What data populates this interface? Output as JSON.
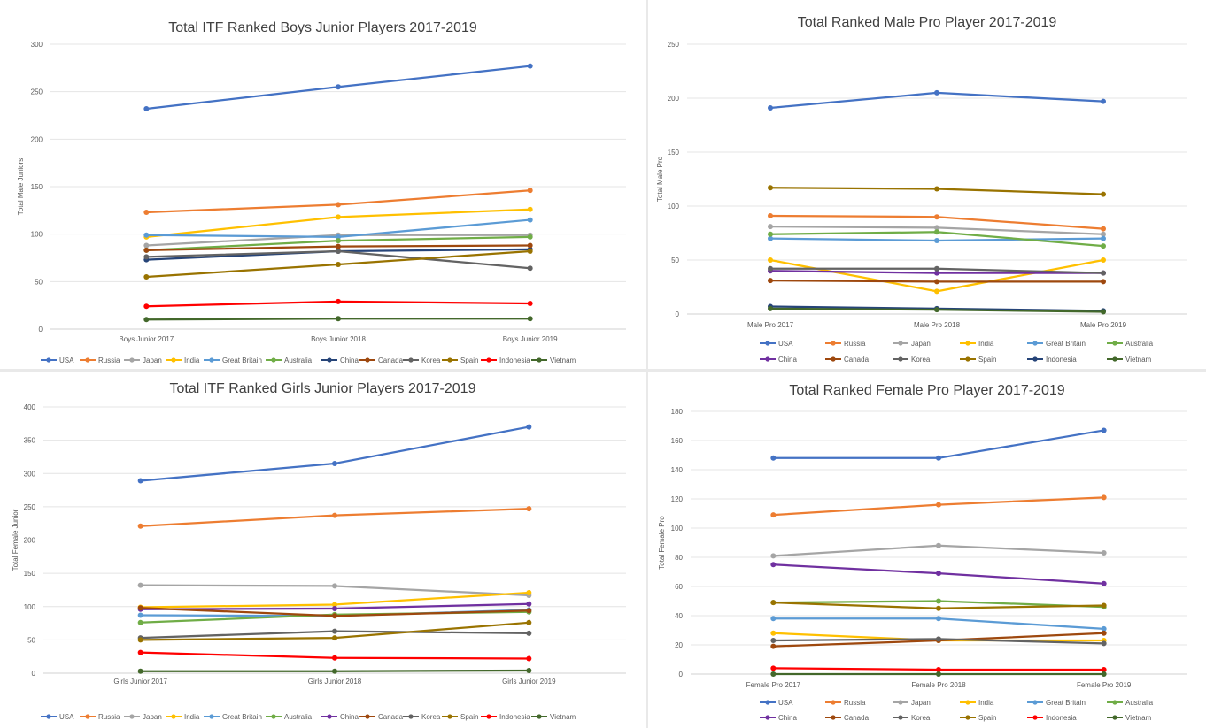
{
  "chart_data": [
    {
      "type": "line",
      "title": "Total ITF Ranked Boys Junior Players 2017-2019",
      "xlabel": "",
      "ylabel": "Total Male Juniors",
      "categories": [
        "Boys Junior 2017",
        "Boys Junior 2018",
        "Boys Junior 2019"
      ],
      "ylim": [
        0,
        300
      ],
      "yticks": [
        0,
        50,
        100,
        150,
        200,
        250,
        300
      ],
      "grid": true,
      "legend": "bottom",
      "series": [
        {
          "name": "USA",
          "color": "#4472c4",
          "values": [
            232,
            255,
            277
          ]
        },
        {
          "name": "Russia",
          "color": "#ed7d31",
          "values": [
            123,
            131,
            146
          ]
        },
        {
          "name": "Japan",
          "color": "#a5a5a5",
          "values": [
            88,
            99,
            99
          ]
        },
        {
          "name": "India",
          "color": "#ffc000",
          "values": [
            97,
            118,
            126
          ]
        },
        {
          "name": "Great Britain",
          "color": "#5b9bd5",
          "values": [
            99,
            97,
            115
          ]
        },
        {
          "name": "Australia",
          "color": "#70ad47",
          "values": [
            83,
            93,
            97
          ]
        },
        {
          "name": "China",
          "color": "#264478",
          "values": [
            73,
            82,
            84
          ]
        },
        {
          "name": "Canada",
          "color": "#9e480e",
          "values": [
            83,
            87,
            88
          ]
        },
        {
          "name": "Korea",
          "color": "#636363",
          "values": [
            76,
            82,
            64
          ]
        },
        {
          "name": "Spain",
          "color": "#997300",
          "values": [
            55,
            68,
            82
          ]
        },
        {
          "name": "Indonesia",
          "color": "#ff0000",
          "values": [
            24,
            29,
            27
          ]
        },
        {
          "name": "Vietnam",
          "color": "#43682b",
          "values": [
            10,
            11,
            11
          ]
        }
      ]
    },
    {
      "type": "line",
      "title": "Total Ranked Male Pro Player 2017-2019",
      "xlabel": "",
      "ylabel": "Total Male Pro",
      "categories": [
        "Male Pro 2017",
        "Male Pro 2018",
        "Male Pro 2019"
      ],
      "ylim": [
        0,
        250
      ],
      "yticks": [
        0,
        50,
        100,
        150,
        200,
        250
      ],
      "grid": true,
      "legend": "bottom",
      "series": [
        {
          "name": "USA",
          "color": "#4472c4",
          "values": [
            191,
            205,
            197
          ]
        },
        {
          "name": "Russia",
          "color": "#ed7d31",
          "values": [
            91,
            90,
            79
          ]
        },
        {
          "name": "Japan",
          "color": "#a5a5a5",
          "values": [
            81,
            80,
            74
          ]
        },
        {
          "name": "India",
          "color": "#ffc000",
          "values": [
            50,
            21,
            50
          ]
        },
        {
          "name": "Great Britain",
          "color": "#5b9bd5",
          "values": [
            70,
            68,
            70
          ]
        },
        {
          "name": "Australia",
          "color": "#70ad47",
          "values": [
            74,
            76,
            63
          ]
        },
        {
          "name": "China",
          "color": "#7030a0",
          "values": [
            40,
            38,
            38
          ]
        },
        {
          "name": "Canada",
          "color": "#9e480e",
          "values": [
            31,
            30,
            30
          ]
        },
        {
          "name": "Korea",
          "color": "#636363",
          "values": [
            42,
            42,
            38
          ]
        },
        {
          "name": "Spain",
          "color": "#997300",
          "values": [
            117,
            116,
            111
          ]
        },
        {
          "name": "Indonesia",
          "color": "#264478",
          "values": [
            7,
            5,
            3
          ]
        },
        {
          "name": "Vietnam",
          "color": "#43682b",
          "values": [
            5,
            4,
            2
          ]
        }
      ]
    },
    {
      "type": "line",
      "title": "Total ITF Ranked Girls Junior Players 2017-2019",
      "xlabel": "",
      "ylabel": "Total Female Junior",
      "categories": [
        "Girls Junior 2017",
        "Girls Junior 2018",
        "Girls Junior 2019"
      ],
      "ylim": [
        0,
        400
      ],
      "yticks": [
        0,
        50,
        100,
        150,
        200,
        250,
        300,
        350,
        400
      ],
      "grid": true,
      "legend": "bottom",
      "series": [
        {
          "name": "USA",
          "color": "#4472c4",
          "values": [
            289,
            315,
            370
          ]
        },
        {
          "name": "Russia",
          "color": "#ed7d31",
          "values": [
            221,
            237,
            247
          ]
        },
        {
          "name": "Japan",
          "color": "#a5a5a5",
          "values": [
            132,
            131,
            117
          ]
        },
        {
          "name": "India",
          "color": "#ffc000",
          "values": [
            99,
            103,
            121
          ]
        },
        {
          "name": "Great Britain",
          "color": "#5b9bd5",
          "values": [
            87,
            86,
            95
          ]
        },
        {
          "name": "Australia",
          "color": "#70ad47",
          "values": [
            76,
            88,
            92
          ]
        },
        {
          "name": "China",
          "color": "#7030a0",
          "values": [
            96,
            97,
            104
          ]
        },
        {
          "name": "Canada",
          "color": "#9e480e",
          "values": [
            98,
            86,
            94
          ]
        },
        {
          "name": "Korea",
          "color": "#636363",
          "values": [
            53,
            63,
            60
          ]
        },
        {
          "name": "Spain",
          "color": "#997300",
          "values": [
            50,
            53,
            76
          ]
        },
        {
          "name": "Indonesia",
          "color": "#ff0000",
          "values": [
            31,
            23,
            22
          ]
        },
        {
          "name": "Vietnam",
          "color": "#43682b",
          "values": [
            3,
            3,
            4
          ]
        }
      ]
    },
    {
      "type": "line",
      "title": "Total Ranked Female Pro Player 2017-2019",
      "xlabel": "",
      "ylabel": "Total Female Pro",
      "categories": [
        "Female Pro 2017",
        "Female Pro 2018",
        "Female Pro 2019"
      ],
      "ylim": [
        0,
        180
      ],
      "yticks": [
        0,
        20,
        40,
        60,
        80,
        100,
        120,
        140,
        160,
        180
      ],
      "grid": true,
      "legend": "bottom",
      "series": [
        {
          "name": "USA",
          "color": "#4472c4",
          "values": [
            148,
            148,
            167
          ]
        },
        {
          "name": "Russia",
          "color": "#ed7d31",
          "values": [
            109,
            116,
            121
          ]
        },
        {
          "name": "Japan",
          "color": "#a5a5a5",
          "values": [
            81,
            88,
            83
          ]
        },
        {
          "name": "India",
          "color": "#ffc000",
          "values": [
            28,
            23,
            23
          ]
        },
        {
          "name": "Great Britain",
          "color": "#5b9bd5",
          "values": [
            38,
            38,
            31
          ]
        },
        {
          "name": "Australia",
          "color": "#70ad47",
          "values": [
            49,
            50,
            46
          ]
        },
        {
          "name": "China",
          "color": "#7030a0",
          "values": [
            75,
            69,
            62
          ]
        },
        {
          "name": "Canada",
          "color": "#9e480e",
          "values": [
            19,
            23,
            28
          ]
        },
        {
          "name": "Korea",
          "color": "#636363",
          "values": [
            23,
            24,
            21
          ]
        },
        {
          "name": "Spain",
          "color": "#997300",
          "values": [
            49,
            45,
            47
          ]
        },
        {
          "name": "Indonesia",
          "color": "#ff0000",
          "values": [
            4,
            3,
            3
          ]
        },
        {
          "name": "Vietnam",
          "color": "#43682b",
          "values": [
            0,
            0,
            0
          ]
        }
      ]
    }
  ]
}
